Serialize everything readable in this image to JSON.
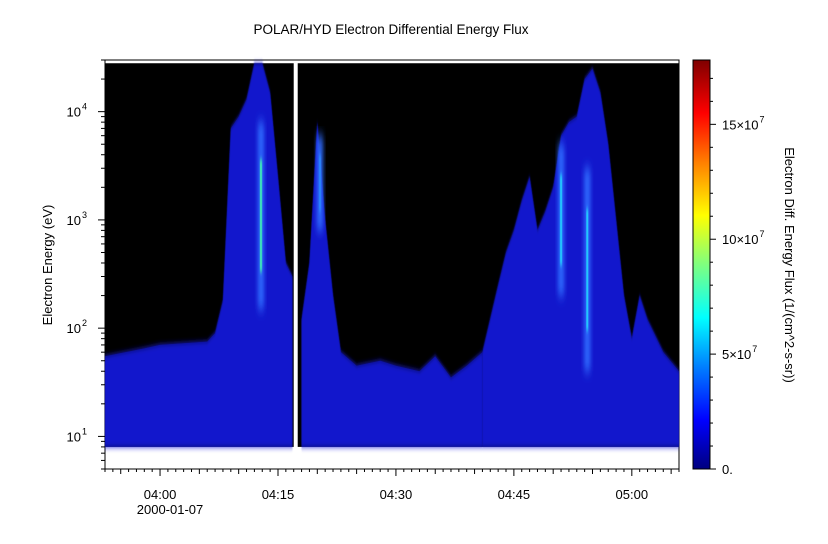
{
  "chart_data": {
    "type": "heatmap",
    "title": "POLAR/HYD  Electron Differential Energy Flux",
    "xlabel": "",
    "ylabel": "Electron Energy (eV)",
    "date_label": "2000-01-07",
    "x_range": [
      "03:53",
      "05:06"
    ],
    "x_ticks": [
      "04:00",
      "04:15",
      "04:30",
      "04:45",
      "05:00"
    ],
    "y_scale": "log",
    "y_range": [
      5,
      30000
    ],
    "y_ticks": [
      {
        "base": "10",
        "exp": "1",
        "value": 10
      },
      {
        "base": "10",
        "exp": "2",
        "value": 100
      },
      {
        "base": "10",
        "exp": "3",
        "value": 1000
      },
      {
        "base": "10",
        "exp": "4",
        "value": 10000
      }
    ],
    "data_energy_range": [
      8,
      28000
    ],
    "data_gap": [
      "04:17:00",
      "04:17:30"
    ],
    "colorbar": {
      "label": "Electron Diff. Energy Flux (1/(cm^2-s-sr))",
      "range": [
        0,
        178000000
      ],
      "ticks": [
        {
          "mant": "0.",
          "exp": "",
          "value": 0
        },
        {
          "mant": "5×10",
          "exp": "7",
          "value": 50000000
        },
        {
          "mant": "10×10",
          "exp": "7",
          "value": 100000000
        },
        {
          "mant": "15×10",
          "exp": "7",
          "value": 150000000
        }
      ],
      "colormap": [
        "#00007f",
        "#0000ff",
        "#007fff",
        "#00ffff",
        "#7fff7f",
        "#ffff00",
        "#ff7f00",
        "#ff0000",
        "#7f0000"
      ]
    },
    "series": [
      {
        "profile": [
          [
            "03:53",
            55
          ],
          [
            "03:58",
            65
          ],
          [
            "04:00",
            70
          ],
          [
            "04:06",
            75
          ],
          [
            "04:07",
            90
          ],
          [
            "04:08",
            180
          ],
          [
            "04:09",
            7000
          ],
          [
            "04:10",
            9000
          ],
          [
            "04:11",
            13000
          ],
          [
            "04:12",
            28000
          ],
          [
            "04:13",
            28000
          ],
          [
            "04:14",
            15000
          ],
          [
            "04:15",
            2500
          ],
          [
            "04:16",
            400
          ],
          [
            "04:16:50",
            300
          ]
        ]
      },
      {
        "profile": [
          [
            "04:18",
            120
          ],
          [
            "04:19",
            400
          ],
          [
            "04:20",
            8000
          ],
          [
            "04:21",
            1000
          ],
          [
            "04:22",
            200
          ],
          [
            "04:23",
            60
          ],
          [
            "04:25",
            45
          ],
          [
            "04:28",
            50
          ],
          [
            "04:30",
            45
          ],
          [
            "04:33",
            40
          ],
          [
            "04:35",
            55
          ],
          [
            "04:37",
            35
          ],
          [
            "04:39",
            45
          ],
          [
            "04:41",
            60
          ]
        ]
      },
      {
        "profile": [
          [
            "04:41",
            60
          ],
          [
            "04:43",
            250
          ],
          [
            "04:44",
            500
          ],
          [
            "04:45",
            800
          ],
          [
            "04:46",
            1500
          ],
          [
            "04:47",
            2500
          ],
          [
            "04:48",
            800
          ],
          [
            "04:49",
            1200
          ],
          [
            "04:50",
            2000
          ],
          [
            "04:51",
            6000
          ],
          [
            "04:52",
            8000
          ],
          [
            "04:53",
            9000
          ],
          [
            "04:54",
            20000
          ],
          [
            "04:55",
            25000
          ],
          [
            "04:56",
            15000
          ],
          [
            "04:57",
            5000
          ],
          [
            "04:58",
            1000
          ],
          [
            "04:59",
            200
          ],
          [
            "05:00",
            80
          ],
          [
            "05:01",
            200
          ],
          [
            "05:02",
            120
          ],
          [
            "05:04",
            60
          ],
          [
            "05:06",
            40
          ]
        ]
      }
    ],
    "peaks": [
      {
        "time": "04:12:50",
        "e_low": 150,
        "e_high": 8000,
        "value": 95000000
      },
      {
        "time": "04:20:20",
        "e_low": 800,
        "e_high": 6000,
        "value": 40000000
      },
      {
        "time": "04:51:00",
        "e_low": 200,
        "e_high": 5000,
        "value": 60000000
      },
      {
        "time": "04:54:20",
        "e_low": 40,
        "e_high": 3000,
        "value": 70000000
      }
    ]
  }
}
